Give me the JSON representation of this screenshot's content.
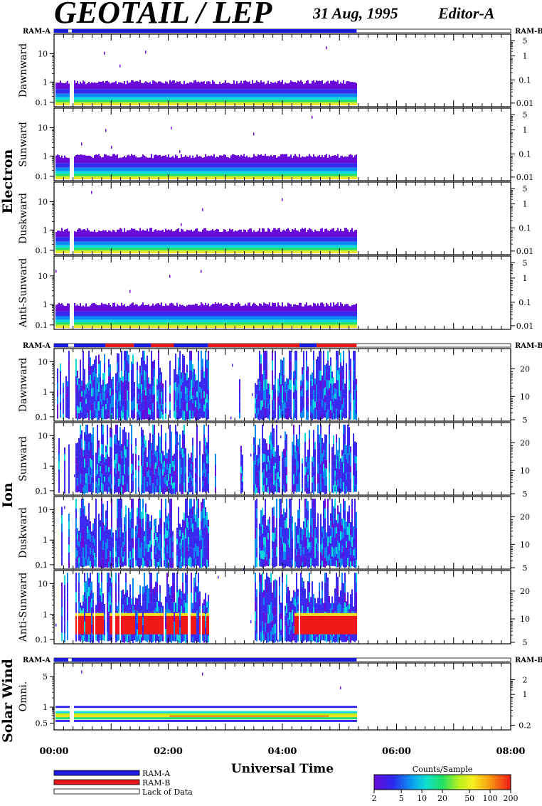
{
  "header": {
    "title": "GEOTAIL / LEP",
    "date": "31 Aug, 1995",
    "editor": "Editor-A"
  },
  "ram_labels": {
    "left": "RAM-A",
    "right": "RAM-B"
  },
  "colors": {
    "ram_a": "#1a1adc",
    "ram_b": "#e31b1b",
    "lack": "#ffffff"
  },
  "legend": {
    "items": [
      {
        "label": "RAM-A",
        "color": "#1a1adc"
      },
      {
        "label": "RAM-B",
        "color": "#e31b1b"
      },
      {
        "label": "Lack of Data",
        "color": "#ffffff"
      }
    ],
    "colorbar": {
      "title": "Counts/Sample",
      "ticks": [
        "2",
        "5",
        "10",
        "20",
        "50",
        "100",
        "200"
      ],
      "range": [
        2,
        200
      ],
      "scale": "log"
    }
  },
  "chart_data": {
    "type": "heatmap",
    "xlabel": "Universal Time",
    "x_ticks": [
      "00:00",
      "02:00",
      "04:00",
      "06:00",
      "08:00"
    ],
    "x_range_hours": [
      0,
      8
    ],
    "data_end_hours": 5.3,
    "groups": [
      {
        "name": "Electron",
        "panels": [
          {
            "name": "Dawnward",
            "left_ticks": [
              "10",
              "1",
              "0.1"
            ],
            "right_ticks": [
              "5",
              "1",
              "0.1",
              "0.01"
            ]
          },
          {
            "name": "Sunward",
            "left_ticks": [
              "10",
              "1",
              "0.1"
            ],
            "right_ticks": [
              "5",
              "1",
              "0.1",
              "0.01"
            ]
          },
          {
            "name": "Duskward",
            "left_ticks": [
              "10",
              "1",
              "0.1"
            ],
            "right_ticks": [
              "5",
              "1",
              "0.1",
              "0.01"
            ]
          },
          {
            "name": "Anti-Sunward",
            "left_ticks": [
              "10",
              "1",
              "0.1"
            ],
            "right_ticks": [
              "5",
              "1",
              "0.1",
              "0.01"
            ]
          }
        ]
      },
      {
        "name": "Ion",
        "panels": [
          {
            "name": "Dawnward",
            "left_ticks": [
              "10",
              "1",
              "0.1"
            ],
            "right_ticks": [
              "20",
              "10",
              "5"
            ]
          },
          {
            "name": "Sunward",
            "left_ticks": [
              "10",
              "1",
              "0.1"
            ],
            "right_ticks": [
              "20",
              "10",
              "5"
            ]
          },
          {
            "name": "Duskward",
            "left_ticks": [
              "10",
              "1",
              "0.1"
            ],
            "right_ticks": [
              "20",
              "10",
              "5"
            ]
          },
          {
            "name": "Anti-Sunward",
            "left_ticks": [
              "10",
              "1",
              "0.1"
            ],
            "right_ticks": [
              "20",
              "10",
              "5"
            ]
          }
        ]
      },
      {
        "name": "Solar Wind",
        "panels": [
          {
            "name": "Omni.",
            "left_ticks": [
              "5",
              "1",
              "0.5"
            ],
            "right_ticks": [
              "2",
              "1",
              "0.2"
            ]
          }
        ]
      }
    ]
  }
}
